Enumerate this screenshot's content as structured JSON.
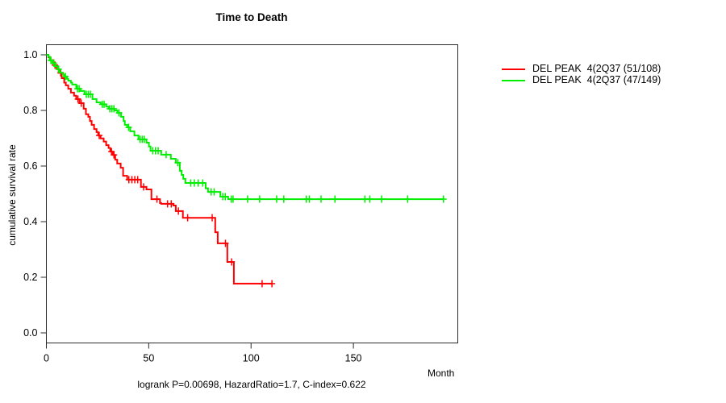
{
  "title": "Time to Death",
  "axes": {
    "x": {
      "label": "Month",
      "ticks": [
        0,
        50,
        100,
        150
      ],
      "tick_labels": [
        "0",
        "50",
        "100",
        "150"
      ]
    },
    "y": {
      "label": "cumulative survival rate",
      "ticks": [
        0.0,
        0.2,
        0.4,
        0.6,
        0.8,
        1.0
      ],
      "tick_labels": [
        "0.0",
        "0.2",
        "0.4",
        "0.6",
        "0.8",
        "1.0"
      ]
    }
  },
  "footer": "logrank P=0.00698, HazardRatio=1.7, C-index=0.622",
  "colors": {
    "series_red": "#ff0000",
    "series_green": "#00ee00",
    "axis": "#2b2b2b",
    "text": "#000000"
  },
  "chart_data": {
    "type": "line",
    "subtype": "kaplan-meier-step",
    "title": "Time to Death",
    "xlabel": "Month",
    "ylabel": "cumulative survival rate",
    "xlim": [
      0,
      201
    ],
    "ylim": [
      0,
      1
    ],
    "grid": false,
    "legend_position": "right-top-outside",
    "series": [
      {
        "name": "DEL PEAK  4(2Q37 (51/108)",
        "color": "#ff0000",
        "events_total": "51/108",
        "end_time": 110.5,
        "steps": [
          [
            0,
            1
          ],
          [
            1,
            0.991
          ],
          [
            2,
            0.981
          ],
          [
            3.5,
            0.963
          ],
          [
            5,
            0.949
          ],
          [
            6,
            0.935
          ],
          [
            7.5,
            0.916
          ],
          [
            8.7,
            0.9
          ],
          [
            9.5,
            0.89
          ],
          [
            10.7,
            0.878
          ],
          [
            12,
            0.864
          ],
          [
            13.5,
            0.853
          ],
          [
            14.6,
            0.841
          ],
          [
            16.2,
            0.826
          ],
          [
            18.2,
            0.806
          ],
          [
            19.3,
            0.786
          ],
          [
            20.5,
            0.777
          ],
          [
            21.3,
            0.762
          ],
          [
            22.1,
            0.748
          ],
          [
            23.3,
            0.733
          ],
          [
            24.5,
            0.722
          ],
          [
            25.3,
            0.71
          ],
          [
            26.5,
            0.699
          ],
          [
            28,
            0.688
          ],
          [
            29.2,
            0.675
          ],
          [
            30.4,
            0.665
          ],
          [
            31.2,
            0.652
          ],
          [
            32.4,
            0.64
          ],
          [
            33.6,
            0.623
          ],
          [
            34.6,
            0.609
          ],
          [
            36.3,
            0.594
          ],
          [
            37.5,
            0.565
          ],
          [
            39.5,
            0.551
          ],
          [
            46.2,
            0.525
          ],
          [
            48.9,
            0.516
          ],
          [
            51.3,
            0.481
          ],
          [
            55.5,
            0.467
          ],
          [
            56.1,
            0.464
          ],
          [
            62,
            0.458
          ],
          [
            63.2,
            0.438
          ],
          [
            66.7,
            0.414
          ],
          [
            82.5,
            0.362
          ],
          [
            83.7,
            0.322
          ],
          [
            88.4,
            0.255
          ],
          [
            91.6,
            0.177
          ]
        ],
        "censors": [
          [
            4.2,
            0.963
          ],
          [
            7,
            0.935
          ],
          [
            15.4,
            0.841
          ],
          [
            17,
            0.826
          ],
          [
            25.8,
            0.71
          ],
          [
            31.8,
            0.652
          ],
          [
            33,
            0.64
          ],
          [
            40.3,
            0.551
          ],
          [
            41.8,
            0.551
          ],
          [
            43.2,
            0.551
          ],
          [
            44.6,
            0.551
          ],
          [
            47.5,
            0.525
          ],
          [
            54,
            0.481
          ],
          [
            59.2,
            0.464
          ],
          [
            61,
            0.464
          ],
          [
            64.5,
            0.438
          ],
          [
            69,
            0.414
          ],
          [
            81,
            0.414
          ],
          [
            87.5,
            0.322
          ],
          [
            90.5,
            0.255
          ],
          [
            105.4,
            0.177
          ],
          [
            110.2,
            0.177
          ]
        ]
      },
      {
        "name": "DEL PEAK  4(2Q37 (47/149)",
        "color": "#00ee00",
        "events_total": "47/149",
        "end_time": 194.3,
        "steps": [
          [
            0,
            1
          ],
          [
            1,
            0.993
          ],
          [
            1.6,
            0.98
          ],
          [
            3,
            0.97
          ],
          [
            4.3,
            0.959
          ],
          [
            5.5,
            0.948
          ],
          [
            6.7,
            0.936
          ],
          [
            8,
            0.929
          ],
          [
            8.7,
            0.922
          ],
          [
            10,
            0.914
          ],
          [
            10.7,
            0.907
          ],
          [
            12,
            0.9
          ],
          [
            12.6,
            0.893
          ],
          [
            14.6,
            0.878
          ],
          [
            16.6,
            0.87
          ],
          [
            18.6,
            0.858
          ],
          [
            22.5,
            0.841
          ],
          [
            24.5,
            0.829
          ],
          [
            26.5,
            0.822
          ],
          [
            29.2,
            0.814
          ],
          [
            30.4,
            0.806
          ],
          [
            33.2,
            0.8
          ],
          [
            34.7,
            0.791
          ],
          [
            36.5,
            0.777
          ],
          [
            37.7,
            0.762
          ],
          [
            38.3,
            0.748
          ],
          [
            39.5,
            0.739
          ],
          [
            41,
            0.725
          ],
          [
            43,
            0.71
          ],
          [
            45,
            0.696
          ],
          [
            48.9,
            0.684
          ],
          [
            50.1,
            0.67
          ],
          [
            50.9,
            0.655
          ],
          [
            56.1,
            0.641
          ],
          [
            60.8,
            0.626
          ],
          [
            63.2,
            0.612
          ],
          [
            65.2,
            0.583
          ],
          [
            66.1,
            0.568
          ],
          [
            66.9,
            0.554
          ],
          [
            67.9,
            0.539
          ],
          [
            77.8,
            0.52
          ],
          [
            79,
            0.507
          ],
          [
            85,
            0.49
          ],
          [
            88.8,
            0.481
          ]
        ],
        "censors": [
          [
            2.2,
            0.98
          ],
          [
            3.6,
            0.97
          ],
          [
            6,
            0.948
          ],
          [
            9.3,
            0.922
          ],
          [
            15.2,
            0.878
          ],
          [
            16,
            0.878
          ],
          [
            19.5,
            0.858
          ],
          [
            20.5,
            0.858
          ],
          [
            21.5,
            0.858
          ],
          [
            27.3,
            0.822
          ],
          [
            28.2,
            0.822
          ],
          [
            31,
            0.806
          ],
          [
            32,
            0.806
          ],
          [
            33,
            0.806
          ],
          [
            35.5,
            0.791
          ],
          [
            40.2,
            0.739
          ],
          [
            45.8,
            0.696
          ],
          [
            46.8,
            0.696
          ],
          [
            47.8,
            0.696
          ],
          [
            52,
            0.655
          ],
          [
            53.3,
            0.655
          ],
          [
            54.6,
            0.655
          ],
          [
            58.5,
            0.641
          ],
          [
            64.2,
            0.612
          ],
          [
            70.5,
            0.539
          ],
          [
            72.3,
            0.539
          ],
          [
            74.2,
            0.539
          ],
          [
            76.4,
            0.539
          ],
          [
            80.5,
            0.507
          ],
          [
            82,
            0.507
          ],
          [
            86.2,
            0.49
          ],
          [
            87.4,
            0.49
          ],
          [
            90.3,
            0.481
          ],
          [
            91.2,
            0.481
          ],
          [
            98.3,
            0.481
          ],
          [
            104.2,
            0.481
          ],
          [
            112.5,
            0.481
          ],
          [
            116,
            0.481
          ],
          [
            127,
            0.481
          ],
          [
            128.5,
            0.481
          ],
          [
            134.2,
            0.481
          ],
          [
            141,
            0.481
          ],
          [
            155.6,
            0.481
          ],
          [
            158,
            0.481
          ],
          [
            163.8,
            0.481
          ],
          [
            176.5,
            0.481
          ],
          [
            194,
            0.481
          ]
        ]
      }
    ]
  }
}
